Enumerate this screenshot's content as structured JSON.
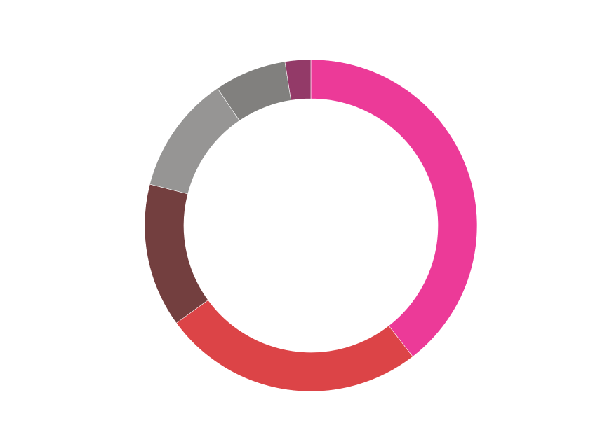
{
  "chart_data": {
    "type": "pie",
    "donut": true,
    "title": "",
    "start_angle_deg": 0,
    "direction": "clockwise",
    "slices": [
      {
        "value": 39.5,
        "color": "#EC3A98"
      },
      {
        "value": 25.5,
        "color": "#DC4447"
      },
      {
        "value": 14.0,
        "color": "#733F3F"
      },
      {
        "value": 11.5,
        "color": "#969594"
      },
      {
        "value": 7.0,
        "color": "#81807E"
      },
      {
        "value": 2.5,
        "color": "#933A68"
      }
    ]
  }
}
